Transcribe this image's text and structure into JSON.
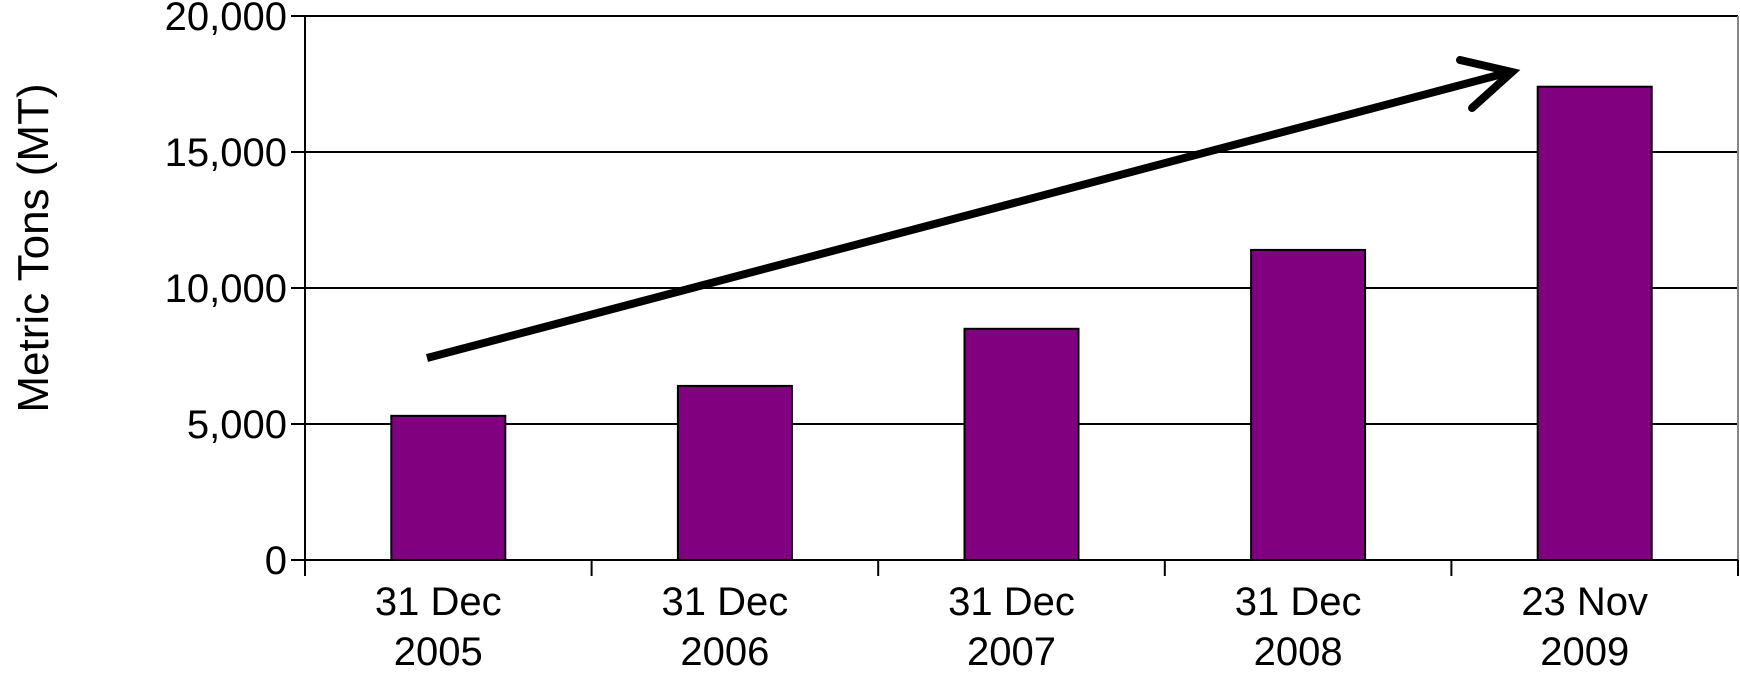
{
  "chart_data": {
    "type": "bar",
    "title": "",
    "xlabel": "",
    "ylabel": "Metric Tons (MT)",
    "categories": [
      [
        "31 Dec",
        "2005"
      ],
      [
        "31 Dec",
        "2006"
      ],
      [
        "31 Dec",
        "2007"
      ],
      [
        "31 Dec",
        "2008"
      ],
      [
        "23 Nov",
        "2009"
      ]
    ],
    "values": [
      5300,
      6400,
      8500,
      11400,
      17400
    ],
    "ylim": [
      0,
      20000
    ],
    "yticks": [
      "0",
      "5,000",
      "10,000",
      "15,000",
      "20,000"
    ],
    "grid": true,
    "legend": "none",
    "bar_color": "#800080",
    "annotations": [
      "upward trend arrow"
    ]
  }
}
